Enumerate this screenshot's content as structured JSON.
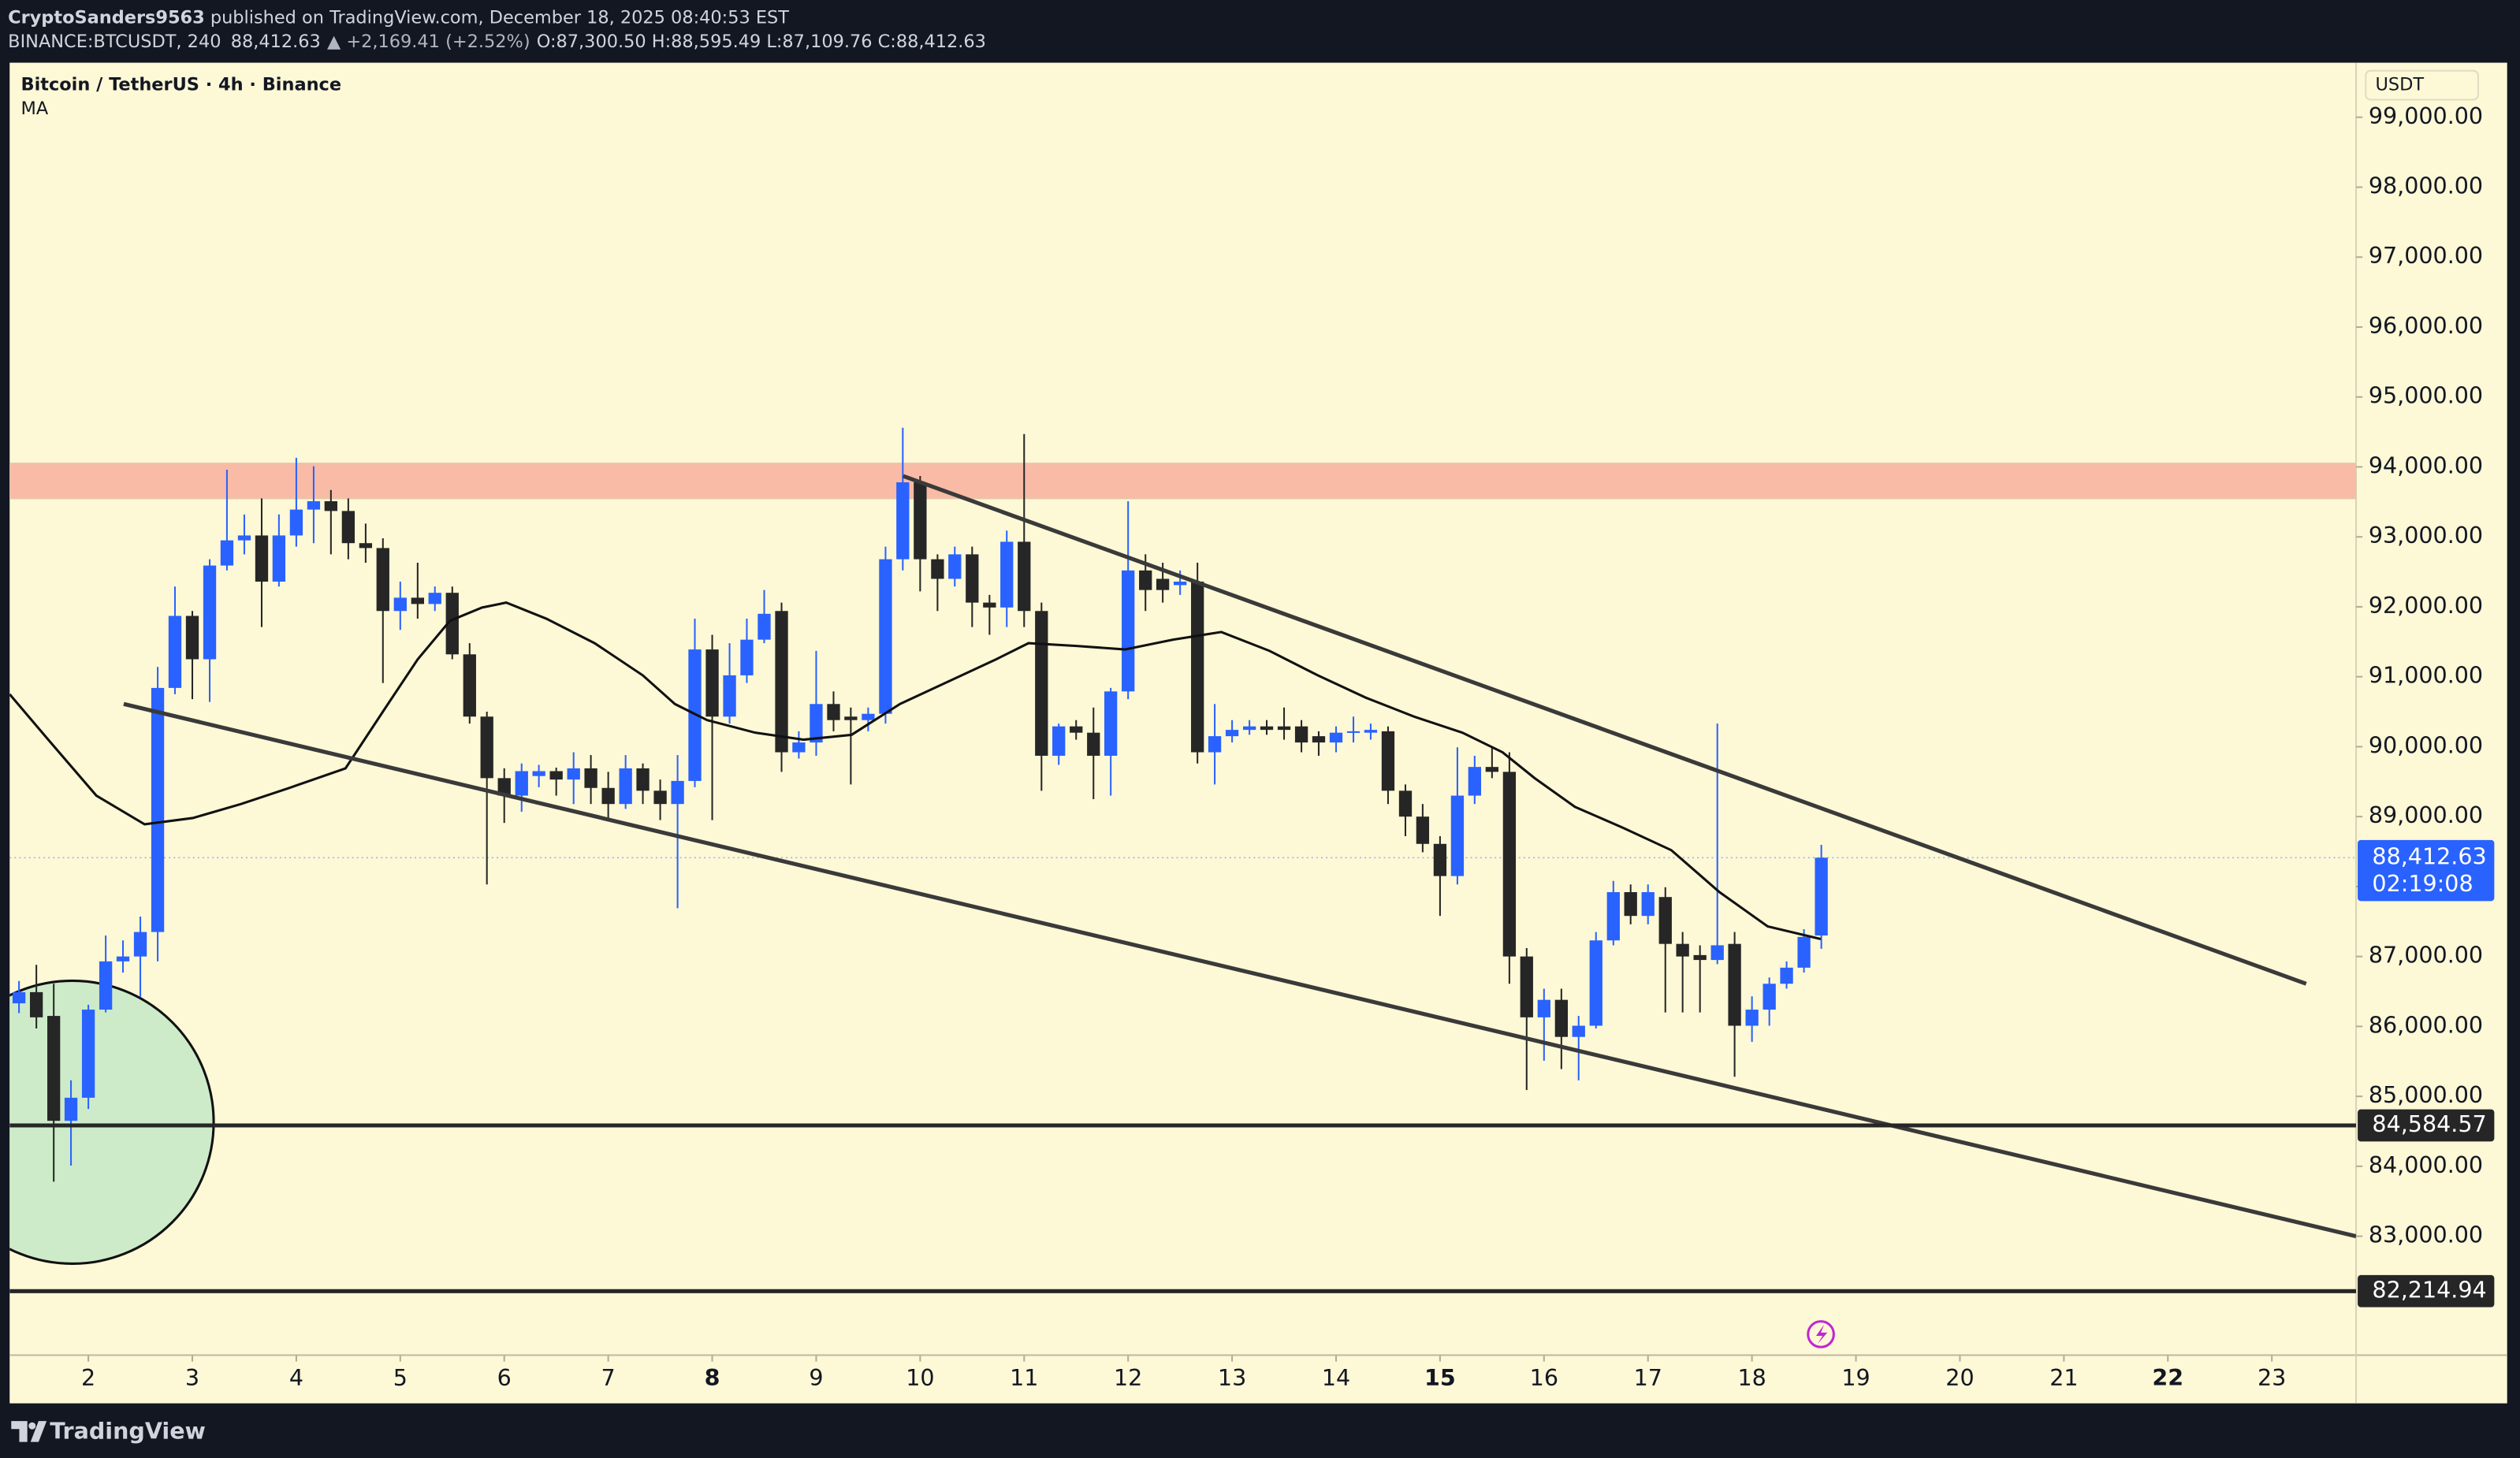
{
  "header": {
    "author": "CryptoSanders9563",
    "published": " published on TradingView.com, December 18, 2025 08:40:53 EST",
    "symbol": "BINANCE:BTCUSDT, 240",
    "price": "88,412.63",
    "change": "▲ +2,169.41 (+2.52%)",
    "ohlc": "O:87,300.50 H:88,595.49 L:87,109.76 C:88,412.63"
  },
  "footer": {
    "brand": "TradingView"
  },
  "chart_data": {
    "type": "candlestick",
    "title": "Bitcoin / TetherUS · 4h · Binance",
    "currency": "USDT",
    "x": [
      1.333,
      1.5,
      1.667,
      1.833,
      2,
      2.167,
      2.333,
      2.5,
      2.667,
      2.833,
      3,
      3.167,
      3.333,
      3.5,
      3.667,
      3.833,
      4,
      4.167,
      4.333,
      4.5,
      4.667,
      4.833,
      5,
      5.167,
      5.333,
      5.5,
      5.667,
      5.833,
      6,
      6.167,
      6.333,
      6.5,
      6.667,
      6.833,
      7,
      7.167,
      7.333,
      7.5,
      7.667,
      7.833,
      8,
      8.167,
      8.333,
      8.5,
      8.667,
      8.833,
      9,
      9.167,
      9.333,
      9.5,
      9.667,
      9.833,
      10,
      10.167,
      10.333,
      10.5,
      10.667,
      10.833,
      11,
      11.167,
      11.333,
      11.5,
      11.667,
      11.833,
      12,
      12.167,
      12.333,
      12.5,
      12.667,
      12.833,
      13,
      13.167,
      13.333,
      13.5,
      13.667,
      13.833,
      14,
      14.167,
      14.333,
      14.5,
      14.667,
      14.833,
      15,
      15.167,
      15.333,
      15.5,
      15.667,
      15.833,
      16,
      16.167,
      16.333,
      16.5,
      16.667,
      16.833,
      17,
      17.167,
      17.333,
      17.5,
      17.667,
      17.833,
      18,
      18.167,
      18.333,
      18.5,
      18.667
    ],
    "series": [
      {
        "up_color": "#2962ff",
        "down_color": "#262626",
        "open": [
          86330,
          86490,
          86150,
          84650,
          84980,
          86240,
          86930,
          87000,
          87350,
          90840,
          91870,
          91250,
          92590,
          92950,
          93020,
          92360,
          93020,
          93390,
          93510,
          93370,
          92910,
          92840,
          91940,
          92130,
          92040,
          92200,
          91320,
          90430,
          89550,
          89300,
          89580,
          89650,
          89530,
          89690,
          89410,
          89180,
          89690,
          89370,
          89180,
          89510,
          91390,
          90430,
          91020,
          91530,
          91940,
          89920,
          90060,
          90610,
          90430,
          90380,
          90470,
          92680,
          93780,
          92680,
          92400,
          92750,
          92060,
          91990,
          92930,
          91940,
          89870,
          90290,
          90200,
          89870,
          90790,
          92520,
          92400,
          92310,
          92360,
          89920,
          90150,
          90240,
          90290,
          90290,
          90290,
          90150,
          90060,
          90200,
          90200,
          90220,
          89370,
          89000,
          88610,
          88150,
          89300,
          89710,
          89640,
          87000,
          86130,
          86380,
          85850,
          86010,
          87230,
          87920,
          87580,
          87850,
          87180,
          87020,
          86950,
          87180,
          86010,
          86240,
          86610,
          86840,
          87300.5
        ],
        "high": [
          86650,
          86880,
          86610,
          85230,
          86310,
          87300,
          87230,
          87570,
          91140,
          92290,
          91940,
          92680,
          93960,
          93320,
          93550,
          93320,
          94130,
          94010,
          93670,
          93550,
          93190,
          92980,
          92360,
          92630,
          92290,
          92290,
          91480,
          90500,
          89690,
          89760,
          89740,
          89700,
          89920,
          89880,
          89640,
          89880,
          89760,
          89530,
          89880,
          91830,
          91600,
          91480,
          91830,
          92240,
          92060,
          90220,
          91370,
          90790,
          90560,
          90560,
          92860,
          94560,
          93870,
          92750,
          92860,
          92860,
          92170,
          93090,
          94470,
          92060,
          90330,
          90380,
          90560,
          90840,
          93510,
          92750,
          92630,
          92520,
          92630,
          90610,
          90380,
          90380,
          90380,
          90560,
          90380,
          90220,
          90290,
          90430,
          90330,
          90290,
          89460,
          89180,
          88720,
          89990,
          89870,
          89990,
          89920,
          87120,
          86540,
          86540,
          86150,
          87350,
          88080,
          88030,
          88030,
          87990,
          87350,
          87160,
          90330,
          87350,
          86430,
          86700,
          86930,
          87390,
          88595.49
        ],
        "low": [
          86190,
          85970,
          83780,
          84010,
          84820,
          86200,
          86770,
          86420,
          86930,
          90750,
          90680,
          90640,
          92520,
          92750,
          91710,
          92290,
          92860,
          92910,
          92750,
          92680,
          92630,
          90910,
          91670,
          91830,
          91940,
          91250,
          90330,
          88030,
          88910,
          89070,
          89420,
          89300,
          89180,
          89180,
          88950,
          89110,
          89180,
          88950,
          87690,
          89420,
          88950,
          90330,
          90910,
          91480,
          89640,
          89830,
          89870,
          90220,
          89460,
          90220,
          90330,
          92520,
          92220,
          91940,
          92290,
          91710,
          91600,
          91710,
          91710,
          89370,
          89740,
          90100,
          89250,
          89300,
          90680,
          91940,
          92060,
          92170,
          89760,
          89460,
          90060,
          90170,
          90170,
          90100,
          89920,
          89870,
          89920,
          90060,
          90100,
          89180,
          88720,
          88490,
          87580,
          88030,
          89180,
          89550,
          86610,
          85090,
          85510,
          85390,
          85230,
          85970,
          87160,
          87460,
          87460,
          86200,
          86200,
          86200,
          86890,
          85280,
          85780,
          86010,
          86540,
          86770,
          87109.76
        ],
        "close": [
          86490,
          86130,
          84650,
          84980,
          86240,
          86930,
          87000,
          87350,
          90840,
          91870,
          91250,
          92590,
          92950,
          93020,
          92360,
          93020,
          93390,
          93510,
          93370,
          92910,
          92840,
          91940,
          92130,
          92040,
          92200,
          91320,
          90430,
          89550,
          89300,
          89650,
          89650,
          89530,
          89690,
          89410,
          89180,
          89690,
          89370,
          89180,
          89510,
          91390,
          90430,
          91020,
          91530,
          91900,
          89920,
          90060,
          90610,
          90380,
          90380,
          90470,
          92680,
          93780,
          92680,
          92400,
          92750,
          92060,
          91990,
          92930,
          91940,
          89870,
          90290,
          90200,
          89870,
          90790,
          92520,
          92240,
          92240,
          92360,
          89920,
          90150,
          90240,
          90290,
          90240,
          90240,
          90060,
          90060,
          90200,
          90220,
          90240,
          89370,
          89000,
          88610,
          88150,
          89300,
          89710,
          89640,
          87000,
          86130,
          86380,
          85850,
          86010,
          87230,
          87920,
          87580,
          87920,
          87180,
          87000,
          86950,
          87160,
          86010,
          86240,
          86610,
          86840,
          87280,
          88412.63
        ]
      }
    ],
    "ma": {
      "name": "MA",
      "color": "#111111",
      "x": [
        1.243,
        1.614,
        2.077,
        2.541,
        3.005,
        3.468,
        3.932,
        4.473,
        4.859,
        5.168,
        5.478,
        5.787,
        6.019,
        6.405,
        6.869,
        7.332,
        7.641,
        7.951,
        8.414,
        8.878,
        9.341,
        9.805,
        10.269,
        10.732,
        11.042,
        11.505,
        11.969,
        12.433,
        12.896,
        13.36,
        13.824,
        14.287,
        14.751,
        15.215,
        15.601,
        15.91,
        16.297,
        16.76,
        17.224,
        17.688,
        18.151,
        18.661
      ],
      "values": [
        90750,
        90100,
        89300,
        88890,
        88980,
        89180,
        89410,
        89690,
        90560,
        91250,
        91800,
        91990,
        92060,
        91830,
        91480,
        91020,
        90610,
        90380,
        90200,
        90100,
        90170,
        90610,
        90930,
        91250,
        91480,
        91440,
        91390,
        91530,
        91640,
        91370,
        91020,
        90700,
        90430,
        90200,
        89920,
        89550,
        89140,
        88840,
        88520,
        87920,
        87430,
        87250
      ]
    },
    "xlim": [
      1.243,
      23.81
    ],
    "ylim": [
      81300,
      99780
    ],
    "xticks": [
      2,
      3,
      4,
      5,
      6,
      7,
      8,
      9,
      10,
      11,
      12,
      13,
      14,
      15,
      16,
      17,
      18,
      19,
      20,
      21,
      22,
      23
    ],
    "bold_xticks": [
      8,
      15,
      22
    ],
    "yticks": [
      {
        "value": 83000,
        "label": "83,000.00"
      },
      {
        "value": 84000,
        "label": "84,000.00"
      },
      {
        "value": 85000,
        "label": "85,000.00"
      },
      {
        "value": 86000,
        "label": "86,000.00"
      },
      {
        "value": 87000,
        "label": "87,000.00"
      },
      {
        "value": 88000,
        "label": "88,000.00"
      },
      {
        "value": 89000,
        "label": "89,000.00"
      },
      {
        "value": 90000,
        "label": "90,000.00"
      },
      {
        "value": 91000,
        "label": "91,000.00"
      },
      {
        "value": 92000,
        "label": "92,000.00"
      },
      {
        "value": 93000,
        "label": "93,000.00"
      },
      {
        "value": 94000,
        "label": "94,000.00"
      },
      {
        "value": 95000,
        "label": "95,000.00"
      },
      {
        "value": 96000,
        "label": "96,000.00"
      },
      {
        "value": 97000,
        "label": "97,000.00"
      },
      {
        "value": 98000,
        "label": "98,000.00"
      },
      {
        "value": 99000,
        "label": "99,000.00"
      }
    ],
    "last_price": {
      "value": 88412.63,
      "label": "88,412.63",
      "countdown": "02:19:08",
      "color": "#2962ff"
    },
    "hlines": [
      {
        "value": 84584.57,
        "label": "84,584.57",
        "color": "#262626"
      },
      {
        "value": 82214.94,
        "label": "82,214.94",
        "color": "#262626"
      }
    ],
    "zone": {
      "from": 93550,
      "to": 94050,
      "color": "#f9bba6"
    },
    "trendlines": [
      {
        "x": [
          9.836,
          23.33
        ],
        "y": [
          93870,
          86610
        ],
        "color": "#3a3a3a"
      },
      {
        "x": [
          2.34,
          23.81
        ],
        "y": [
          90610,
          83000
        ],
        "color": "#3a3a3a"
      }
    ],
    "circle": {
      "x": 1.845,
      "y": 84630,
      "color": "#cdebc9"
    }
  }
}
